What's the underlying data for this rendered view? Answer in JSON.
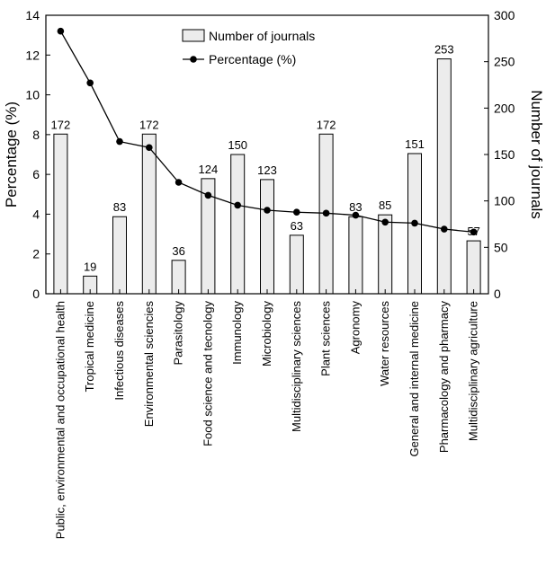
{
  "chart_data": {
    "type": "bar",
    "title": "",
    "categories": [
      "Public, environmental and occupational health",
      "Tropical medicine",
      "Infectious diseases",
      "Environmental sciencies",
      "Parasitology",
      "Food science and tecnology",
      "Immunology",
      "Microbiology",
      "Multidisciplinary sciences",
      "Plant sciences",
      "Agronomy",
      "Water resources",
      "General and internal medicine",
      "Pharmacology and pharmacy",
      "Multidisciplinary agriculture"
    ],
    "series": [
      {
        "name": "Number of journals",
        "type": "bar",
        "axis": "right",
        "values": [
          172,
          19,
          83,
          172,
          36,
          124,
          150,
          123,
          63,
          172,
          83,
          85,
          151,
          253,
          57
        ],
        "color": "#ececec"
      },
      {
        "name": "Percentage (%)",
        "type": "line",
        "axis": "left",
        "values": [
          13.2,
          10.6,
          7.65,
          7.35,
          5.6,
          4.95,
          4.45,
          4.2,
          4.1,
          4.05,
          3.95,
          3.6,
          3.55,
          3.25,
          3.1
        ],
        "color": "#000000"
      }
    ],
    "y_left": {
      "label": "Percentage (%)",
      "lim": [
        0,
        14
      ],
      "ticks": [
        0,
        2,
        4,
        6,
        8,
        10,
        12,
        14
      ]
    },
    "y_right": {
      "label": "Number of journals",
      "lim": [
        0,
        300
      ],
      "ticks": [
        0,
        50,
        100,
        150,
        200,
        250,
        300
      ]
    },
    "xlabel": "",
    "grid": false,
    "legend": {
      "position": "top-center",
      "items": [
        "Number of journals",
        "Percentage (%)"
      ]
    }
  }
}
